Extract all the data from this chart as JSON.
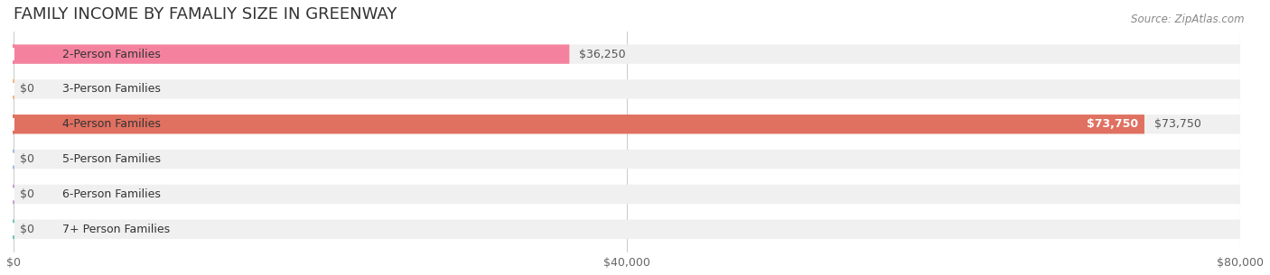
{
  "title": "FAMILY INCOME BY FAMALIY SIZE IN GREENWAY",
  "source": "Source: ZipAtlas.com",
  "categories": [
    "2-Person Families",
    "3-Person Families",
    "4-Person Families",
    "5-Person Families",
    "6-Person Families",
    "7+ Person Families"
  ],
  "values": [
    36250,
    0,
    73750,
    0,
    0,
    0
  ],
  "bar_colors": [
    "#f4829e",
    "#f5b97f",
    "#e07060",
    "#a8b8e0",
    "#c4a0d0",
    "#70c8b8"
  ],
  "dot_colors": [
    "#f4829e",
    "#f5b97f",
    "#e07060",
    "#a8b8e0",
    "#c4a0d0",
    "#70c8b8"
  ],
  "xlim": [
    0,
    80000
  ],
  "xticks": [
    0,
    40000,
    80000
  ],
  "xtick_labels": [
    "$0",
    "$40,000",
    "$80,000"
  ],
  "bar_labels": [
    "$36,250",
    "$0",
    "$73,750",
    "$0",
    "$0",
    "$0"
  ],
  "background_color": "#ffffff",
  "bar_bg_color": "#f0f0f0",
  "title_fontsize": 13,
  "label_fontsize": 9,
  "axis_fontsize": 9,
  "source_fontsize": 8.5
}
